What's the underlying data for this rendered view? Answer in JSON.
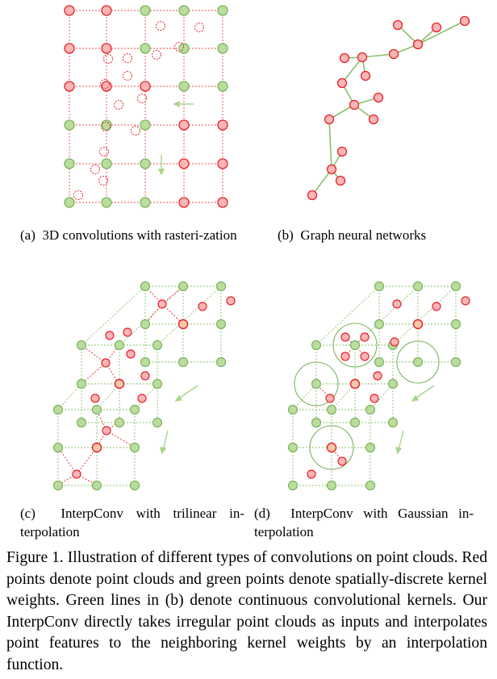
{
  "figure": {
    "panels": [
      {
        "id": "a",
        "label": "(a)",
        "caption": "3D convolutions with rasterization",
        "caption_text": "3D convolutions with rasteri-zation"
      },
      {
        "id": "b",
        "label": "(b)",
        "caption": "Graph neural networks",
        "caption_text": "Graph neural networks"
      },
      {
        "id": "c",
        "label": "(c)",
        "caption": "InterpConv with trilinear interpolation",
        "caption_text": "InterpConv with trilinear in-terpolation"
      },
      {
        "id": "d",
        "label": "(d)",
        "caption": "InterpConv with Gaussian interpolation",
        "caption_text": "InterpConv with Gaussian in-terpolation"
      }
    ],
    "caption": "Figure 1. Illustration of different types of convolutions on point clouds. Red points denote point clouds and green points denote spatially-discrete kernel weights. Green lines in (b) denote continuous convolutional kernels. Our InterpConv directly takes irregular point clouds as inputs and interpolates point features to the neighboring kernel weights by an interpolation function."
  },
  "colors": {
    "point_fill": "#f9b6b6",
    "point_stroke": "#e8202a",
    "kernel_fill": "#b9dd9d",
    "kernel_stroke": "#7cb35e",
    "grid_red": "#ee4b4b",
    "grid_green": "#8bc06a",
    "arrow_green": "#a8d68a"
  }
}
